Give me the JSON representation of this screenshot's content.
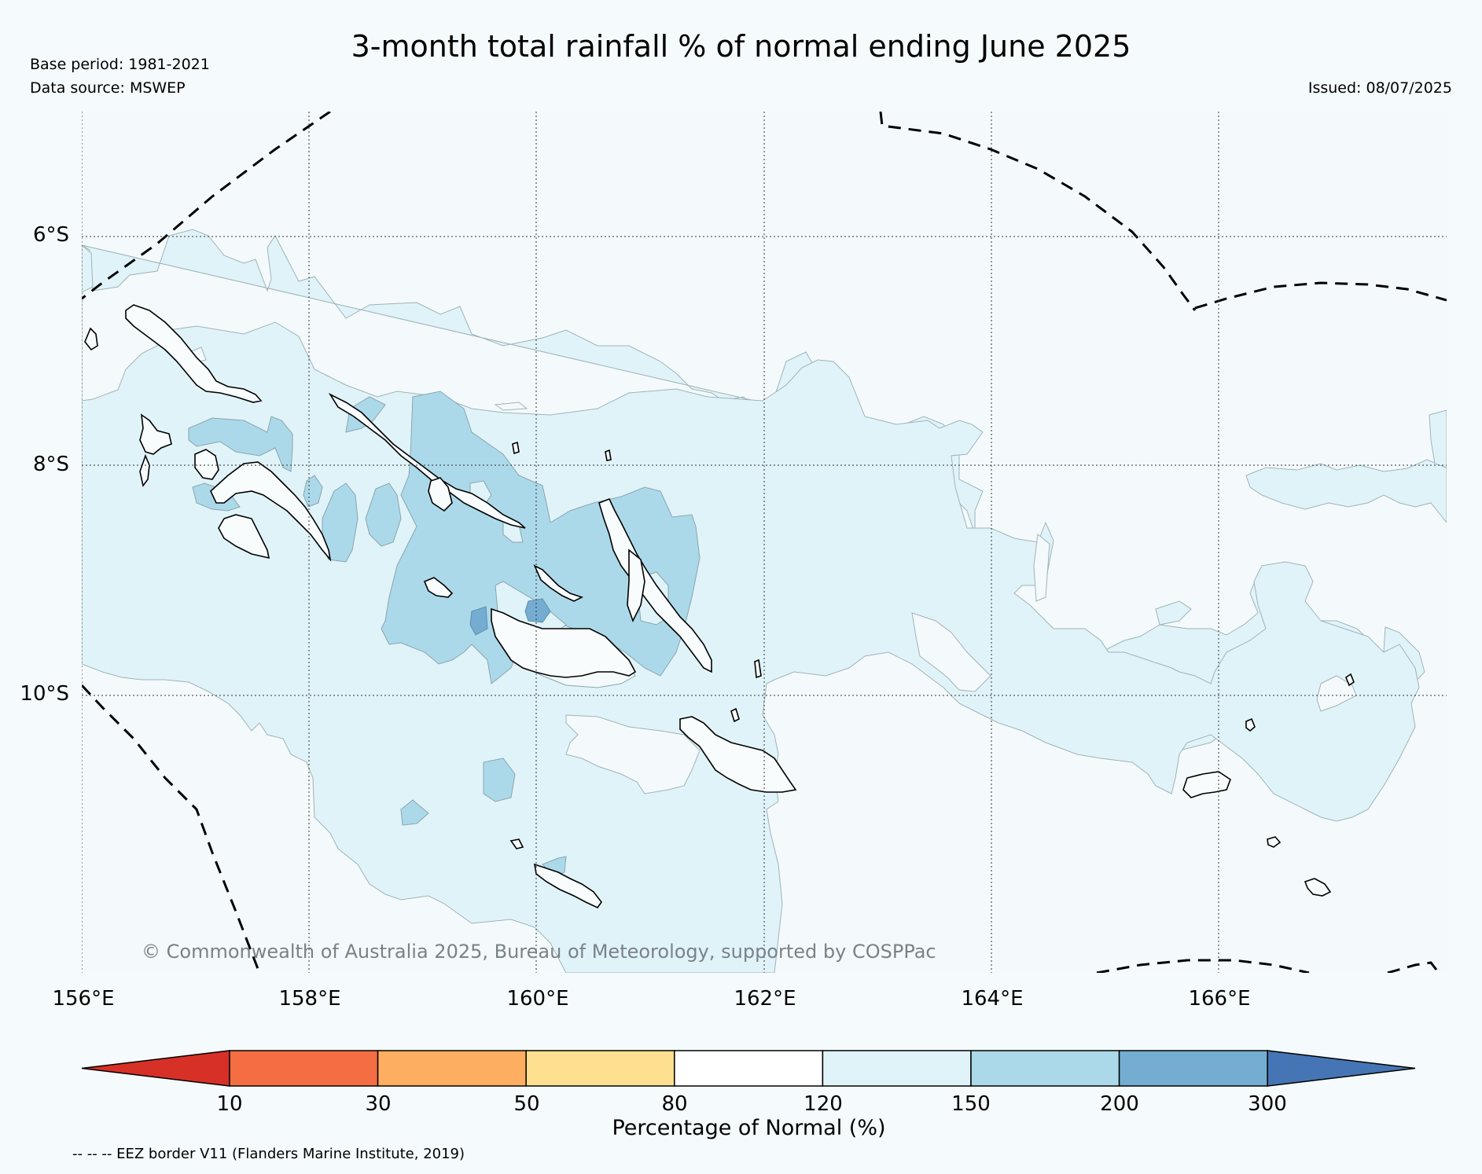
{
  "title": "3-month total rainfall % of normal ending June 2025",
  "base_period": "Base period: 1981-2021",
  "data_source": "Data source: MSWEP",
  "issued": "Issued: 08/07/2025",
  "map": {
    "lat_labels": [
      "6°S",
      "8°S",
      "10°S"
    ],
    "lon_labels": [
      "156°E",
      "158°E",
      "160°E",
      "162°E",
      "164°E",
      "166°E"
    ],
    "copyright": "© Commonwealth of Australia 2025, Bureau of Meteorology, supported by COSPPac",
    "eez_line_style": "dashed"
  },
  "colorbar": {
    "title": "Percentage of Normal (%)",
    "ticks": [
      "10",
      "30",
      "50",
      "80",
      "120",
      "150",
      "200",
      "300"
    ],
    "colors": [
      "#d73027",
      "#f46d43",
      "#fdae61",
      "#fee090",
      "#ffffff",
      "#e0f3f8",
      "#abd9e9",
      "#74add1",
      "#4575b4"
    ]
  },
  "legend_note": "-- -- -- EEZ border V11 (Flanders Marine Institute, 2019)"
}
